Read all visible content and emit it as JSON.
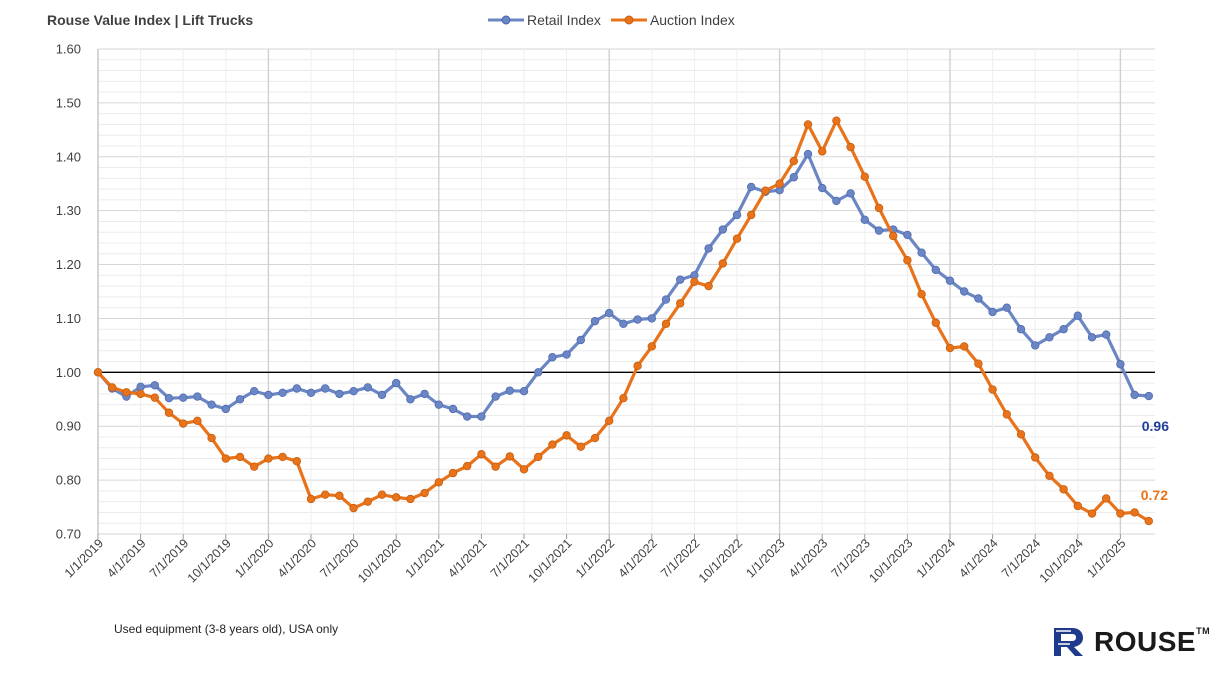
{
  "header": {
    "title": "Rouse Value Index  |  Lift Trucks"
  },
  "footnote": "Used equipment (3-8 years old), USA only",
  "brand": {
    "name": "ROUSE",
    "mark": "TM",
    "icon": "rouse-r-logo"
  },
  "colors": {
    "retail": "#6B86C4",
    "auction": "#E8731A",
    "retail_label": "#1F3E9C",
    "auction_label": "#E8731A",
    "baseline": "#000000"
  },
  "chart_data": {
    "type": "line",
    "xlabel": "",
    "ylabel": "",
    "ylim": [
      0.7,
      1.6
    ],
    "yticks": [
      "0.70",
      "0.80",
      "0.90",
      "1.00",
      "1.10",
      "1.20",
      "1.30",
      "1.40",
      "1.50",
      "1.60"
    ],
    "baseline": 1.0,
    "grid": true,
    "legend": "top-center",
    "x_start": "2019-01",
    "x_tick_labels": [
      "1/1/2019",
      "4/1/2019",
      "7/1/2019",
      "10/1/2019",
      "1/1/2020",
      "4/1/2020",
      "7/1/2020",
      "10/1/2020",
      "1/1/2021",
      "4/1/2021",
      "7/1/2021",
      "10/1/2021",
      "1/1/2022",
      "4/1/2022",
      "7/1/2022",
      "10/1/2022",
      "1/1/2023",
      "4/1/2023",
      "7/1/2023",
      "10/1/2023",
      "1/1/2024",
      "4/1/2024",
      "7/1/2024",
      "10/1/2024",
      "1/1/2025"
    ],
    "series": [
      {
        "name": "Retail Index",
        "end_label": "0.96",
        "values": [
          1.0,
          0.97,
          0.955,
          0.973,
          0.976,
          0.952,
          0.953,
          0.955,
          0.94,
          0.932,
          0.95,
          0.965,
          0.958,
          0.962,
          0.97,
          0.962,
          0.97,
          0.96,
          0.965,
          0.972,
          0.958,
          0.98,
          0.95,
          0.96,
          0.94,
          0.932,
          0.918,
          0.918,
          0.955,
          0.966,
          0.965,
          1.0,
          1.028,
          1.033,
          1.06,
          1.095,
          1.11,
          1.09,
          1.098,
          1.1,
          1.135,
          1.172,
          1.18,
          1.23,
          1.265,
          1.292,
          1.344,
          1.335,
          1.338,
          1.362,
          1.405,
          1.342,
          1.318,
          1.332,
          1.283,
          1.263,
          1.265,
          1.255,
          1.222,
          1.19,
          1.17,
          1.15,
          1.137,
          1.112,
          1.12,
          1.08,
          1.05,
          1.065,
          1.08,
          1.105,
          1.065,
          1.07,
          1.015,
          0.958,
          0.956
        ]
      },
      {
        "name": "Auction Index",
        "end_label": "0.72",
        "values": [
          1.0,
          0.972,
          0.963,
          0.96,
          0.953,
          0.925,
          0.905,
          0.91,
          0.878,
          0.84,
          0.843,
          0.825,
          0.84,
          0.843,
          0.835,
          0.765,
          0.773,
          0.771,
          0.748,
          0.76,
          0.773,
          0.768,
          0.765,
          0.776,
          0.796,
          0.813,
          0.826,
          0.848,
          0.825,
          0.844,
          0.82,
          0.843,
          0.866,
          0.883,
          0.862,
          0.878,
          0.91,
          0.952,
          1.012,
          1.048,
          1.09,
          1.128,
          1.168,
          1.16,
          1.202,
          1.248,
          1.292,
          1.337,
          1.35,
          1.392,
          1.46,
          1.41,
          1.467,
          1.418,
          1.363,
          1.305,
          1.253,
          1.208,
          1.145,
          1.092,
          1.045,
          1.048,
          1.016,
          0.968,
          0.922,
          0.885,
          0.842,
          0.808,
          0.783,
          0.752,
          0.738,
          0.766,
          0.738,
          0.74,
          0.724
        ]
      }
    ]
  }
}
